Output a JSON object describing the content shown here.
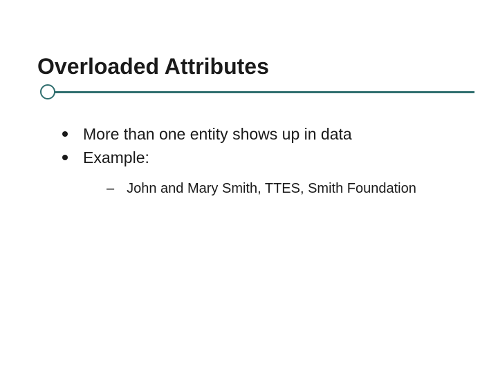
{
  "slide": {
    "title": "Overloaded Attributes",
    "accent_color": "#2f6e6e",
    "title_fontsize": 32,
    "body_fontsize": 23,
    "sub_fontsize": 20,
    "text_color": "#1a1a1a",
    "background_color": "#ffffff",
    "bullets": [
      {
        "text": "More than one entity shows up in data"
      },
      {
        "text": "Example:"
      }
    ],
    "sub_bullets": [
      {
        "text": "John and Mary Smith, TTES, Smith Foundation"
      }
    ]
  }
}
